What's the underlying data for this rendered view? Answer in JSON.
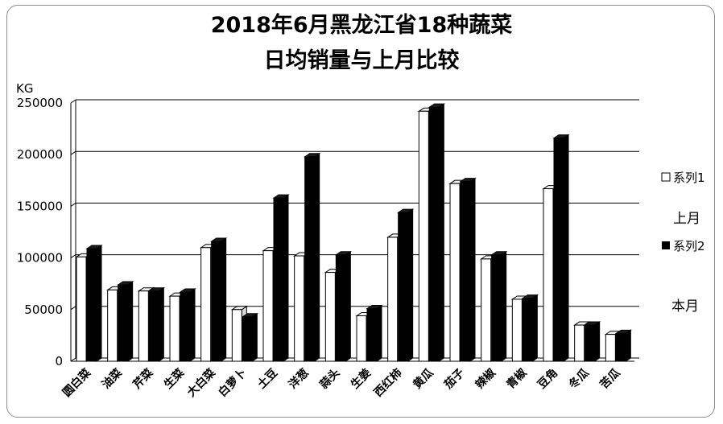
{
  "chart_data": {
    "type": "bar",
    "title_lines": [
      "2018年6月黑龙江省18种蔬菜",
      "日均销量与上月比较"
    ],
    "ylabel": "KG",
    "ylim": [
      0,
      250000
    ],
    "yticks": [
      "0",
      "50000",
      "100000",
      "150000",
      "200000",
      "250000"
    ],
    "grid": true,
    "legend_position": "right",
    "categories": [
      "圆白菜",
      "油菜",
      "芹菜",
      "生菜",
      "大白菜",
      "白萝卜",
      "土豆",
      "洋葱",
      "蒜头",
      "生姜",
      "西红柿",
      "黄瓜",
      "茄子",
      "辣椒",
      "青椒",
      "豆角",
      "冬瓜",
      "苦瓜"
    ],
    "series": [
      {
        "name": "系列1",
        "color": "#ffffff",
        "values": [
          101000,
          69000,
          68000,
          63000,
          110000,
          50000,
          107000,
          102000,
          86000,
          44000,
          120000,
          242000,
          172000,
          99000,
          60000,
          167000,
          35000,
          26000
        ]
      },
      {
        "name": "系列2",
        "color": "#000000",
        "values": [
          109000,
          74000,
          68000,
          67000,
          116000,
          43000,
          158000,
          198000,
          103000,
          51000,
          144000,
          246000,
          174000,
          103000,
          61000,
          216000,
          35000,
          27000
        ]
      }
    ],
    "annotations": [
      "上月",
      "本月"
    ]
  }
}
